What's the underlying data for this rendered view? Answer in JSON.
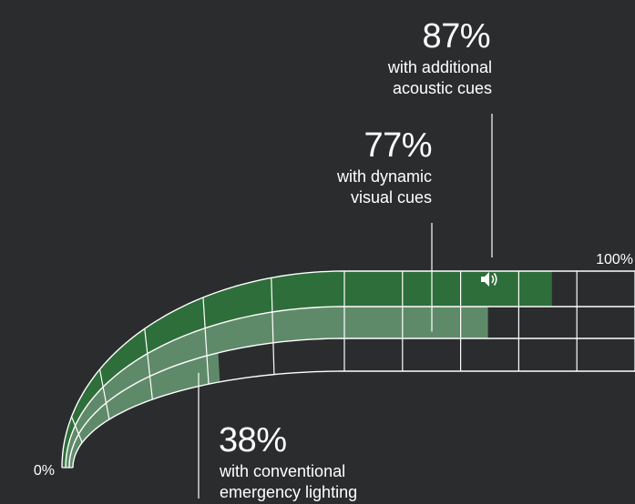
{
  "chart_data": {
    "type": "bar",
    "title": "",
    "scale": {
      "min_label": "0%",
      "max_label": "100%",
      "min": 0,
      "max": 100
    },
    "series": [
      {
        "values": [
          87
        ],
        "percent_label": "87%",
        "line1": "with additional",
        "line2": "acoustic cues",
        "icon": "speaker-icon"
      },
      {
        "values": [
          77
        ],
        "percent_label": "77%",
        "line1": "with dynamic",
        "line2": "visual cues"
      },
      {
        "values": [
          38
        ],
        "percent_label": "38%",
        "line1": "with conventional",
        "line2": "emergency lighting"
      }
    ]
  },
  "colors": {
    "background": "#2b2c2e",
    "full_green": "#2e6e3a",
    "light_green": "#5f8a6a",
    "grid_line": "#ffffff"
  }
}
